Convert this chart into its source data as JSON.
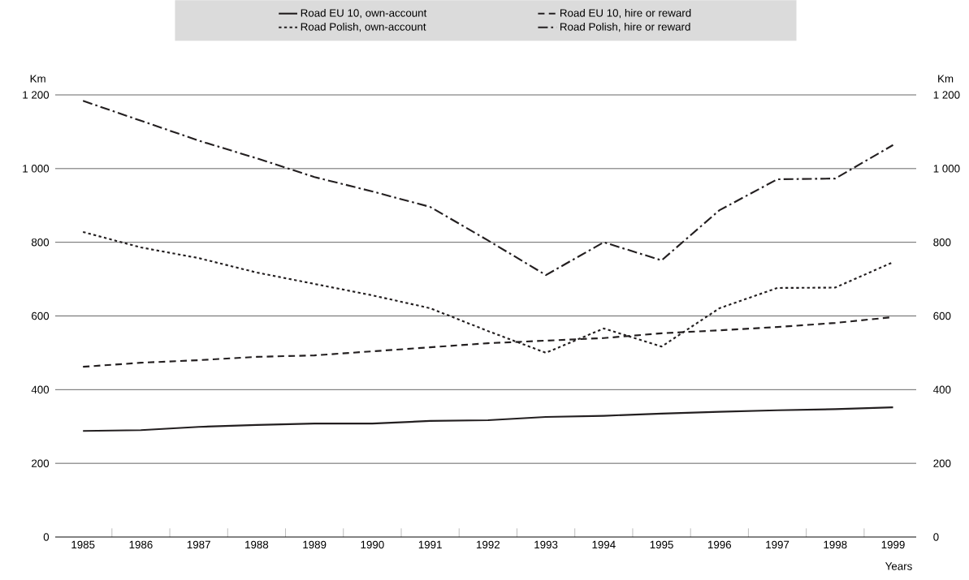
{
  "chart_data": {
    "type": "line",
    "xlabel": "Years",
    "ylabel": "Km",
    "y2label": "Km",
    "categories": [
      "1985",
      "1986",
      "1987",
      "1988",
      "1989",
      "1990",
      "1991",
      "1992",
      "1993",
      "1994",
      "1995",
      "1996",
      "1997",
      "1998",
      "1999"
    ],
    "series": [
      {
        "name": "Road EU 10, own-account",
        "color": "#231f20",
        "line_style": "solid",
        "values": [
          288,
          290,
          299,
          304,
          308,
          308,
          315,
          317,
          326,
          329,
          335,
          340,
          344,
          347,
          352
        ]
      },
      {
        "name": "Road EU 10, hire or reward",
        "color": "#231f20",
        "line_style": "dashed",
        "values": [
          462,
          473,
          480,
          489,
          493,
          504,
          515,
          526,
          533,
          540,
          553,
          561,
          570,
          581,
          597
        ]
      },
      {
        "name": "Road Polish, own-account",
        "color": "#231f20",
        "line_style": "dotted",
        "values": [
          828,
          786,
          757,
          718,
          687,
          656,
          621,
          559,
          500,
          566,
          517,
          621,
          676,
          677,
          746
        ]
      },
      {
        "name": "Road Polish, hire or reward",
        "color": "#231f20",
        "line_style": "dashdot",
        "values": [
          1184,
          1130,
          1076,
          1028,
          977,
          938,
          896,
          805,
          711,
          800,
          751,
          887,
          971,
          973,
          1064
        ]
      }
    ],
    "ylim": [
      0,
      1200
    ],
    "yticks": [
      0,
      200,
      400,
      600,
      800,
      {
        "value": 1000,
        "label": "1 000"
      },
      {
        "value": 1200,
        "label": "1 200"
      }
    ],
    "y2lim": [
      0,
      1200
    ],
    "y2ticks": [
      0,
      200,
      400,
      600,
      800,
      {
        "value": 1000,
        "label": "1 000"
      },
      {
        "value": 1200,
        "label": "1 200"
      }
    ],
    "grid": "y",
    "legend": "top",
    "marker": "none"
  }
}
